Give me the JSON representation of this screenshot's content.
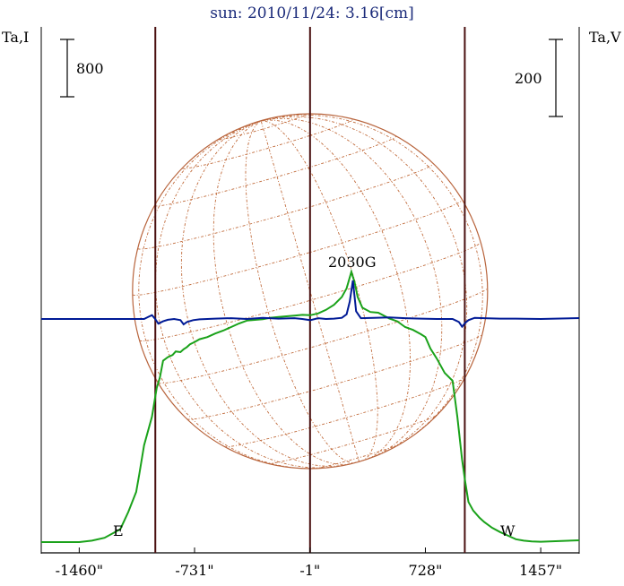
{
  "title": "sun: 2010/11/24: 3.16[cm]",
  "left_axis_label": "Ta,I",
  "right_axis_label": "Ta,V",
  "left_scale_label": "800",
  "right_scale_label": "200",
  "peak_label": "2030G",
  "east_label": "E",
  "west_label": "W",
  "colors": {
    "title": "#1a2a7a",
    "intensity": "#1aa21a",
    "polarization": "#001a96",
    "vertical_lines": "#4a1010",
    "disk": "#b8643c",
    "grid": "#c06a3a",
    "axis": "#000000"
  },
  "chart_data": {
    "type": "line",
    "xlabel": "",
    "xlim": [
      -1700,
      1700
    ],
    "x_tick_labels": [
      "-1460\"",
      "-731\"",
      "-1\"",
      "728\"",
      "1457\""
    ],
    "x_ticks": [
      -1460,
      -731,
      -1,
      728,
      1457
    ],
    "limb_lines": [
      -979,
      -1,
      977
    ],
    "intensity_scale_bar": 800,
    "polarization_scale_bar": 200,
    "series": [
      {
        "name": "Ta,I",
        "x": [
          -1460,
          -1380,
          -1300,
          -1200,
          -1150,
          -1100,
          -1080,
          -1050,
          -1000,
          -970,
          -950,
          -930,
          -900,
          -870,
          -850,
          -820,
          -800,
          -780,
          -760,
          -731,
          -700,
          -650,
          -600,
          -550,
          -500,
          -450,
          -400,
          -350,
          -300,
          -250,
          -200,
          -150,
          -100,
          -50,
          0,
          50,
          100,
          150,
          200,
          230,
          260,
          280,
          300,
          330,
          380,
          430,
          500,
          550,
          600,
          650,
          700,
          728,
          760,
          800,
          850,
          900,
          930,
          960,
          980,
          1000,
          1030,
          1070,
          1100,
          1150,
          1200,
          1260,
          1300,
          1350,
          1400,
          1457
        ],
        "y": [
          0,
          20,
          60,
          180,
          420,
          700,
          950,
          1350,
          1750,
          2150,
          2300,
          2530,
          2580,
          2610,
          2660,
          2650,
          2690,
          2720,
          2760,
          2790,
          2830,
          2860,
          2910,
          2950,
          3000,
          3050,
          3090,
          3100,
          3110,
          3130,
          3140,
          3150,
          3160,
          3170,
          3165,
          3190,
          3240,
          3310,
          3420,
          3540,
          3770,
          3630,
          3420,
          3270,
          3210,
          3200,
          3120,
          3080,
          3000,
          2960,
          2900,
          2860,
          2700,
          2560,
          2360,
          2250,
          1750,
          1150,
          840,
          560,
          440,
          340,
          280,
          200,
          140,
          80,
          40,
          20,
          10,
          5
        ]
      },
      {
        "name": "Ta,V",
        "x": [
          -1460,
          -1100,
          -1050,
          -1020,
          -1000,
          -980,
          -960,
          -930,
          -900,
          -860,
          -820,
          -800,
          -780,
          -740,
          -700,
          -600,
          -500,
          -400,
          -300,
          -200,
          -100,
          -50,
          0,
          50,
          100,
          150,
          200,
          230,
          250,
          270,
          290,
          320,
          400,
          500,
          600,
          700,
          800,
          900,
          940,
          960,
          980,
          1000,
          1040,
          1100,
          1200,
          1300,
          1457
        ],
        "y": [
          0,
          0,
          0,
          6,
          10,
          0,
          -12,
          -6,
          -2,
          0,
          -3,
          -14,
          -8,
          -3,
          -1,
          1,
          2,
          0,
          3,
          1,
          2,
          0,
          -3,
          2,
          0,
          1,
          3,
          12,
          45,
          100,
          20,
          2,
          3,
          4,
          2,
          1,
          0,
          0,
          -8,
          -20,
          -10,
          -3,
          3,
          2,
          1,
          1,
          0
        ]
      }
    ]
  }
}
